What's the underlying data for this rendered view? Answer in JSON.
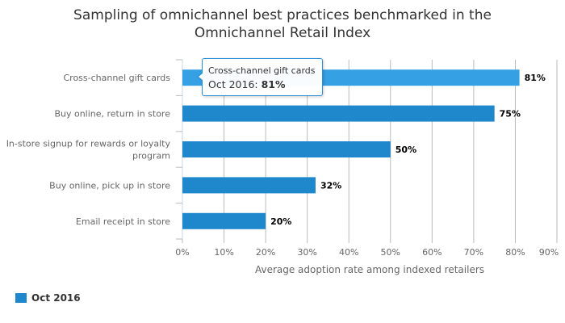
{
  "chart_data": {
    "type": "bar",
    "orientation": "horizontal",
    "title": "Sampling of omnichannel best practices benchmarked in the Omnichannel Retail Index",
    "title_lines": [
      "Sampling of omnichannel best practices benchmarked in the",
      "Omnichannel Retail Index"
    ],
    "categories": [
      "Cross-channel gift cards",
      "Buy online, return in store",
      "In-store signup for rewards or loyalty program",
      "Buy online, pick up in store",
      "Email receipt in store"
    ],
    "category_lines": [
      [
        "Cross-channel gift cards"
      ],
      [
        "Buy online, return in store"
      ],
      [
        "In-store signup for rewards or loyalty",
        "program"
      ],
      [
        "Buy online, pick up in store"
      ],
      [
        "Email receipt in store"
      ]
    ],
    "series": [
      {
        "name": "Oct 2016",
        "values": [
          81,
          75,
          50,
          32,
          20
        ],
        "color": "#1f88cc",
        "hover_color": "#35a0e4"
      }
    ],
    "data_labels": [
      "81%",
      "75%",
      "50%",
      "32%",
      "20%"
    ],
    "xlabel": "Average adoption rate among indexed retailers",
    "ylabel": "",
    "xlim": [
      0,
      90
    ],
    "xticks": [
      "0%",
      "10%",
      "20%",
      "30%",
      "40%",
      "50%",
      "60%",
      "70%",
      "80%",
      "90%"
    ],
    "grid": true,
    "legend": "bottom-left"
  },
  "tooltip": {
    "title": "Cross-channel gift cards",
    "series": "Oct 2016: ",
    "value": "81%"
  },
  "legend": {
    "label": "Oct 2016"
  }
}
